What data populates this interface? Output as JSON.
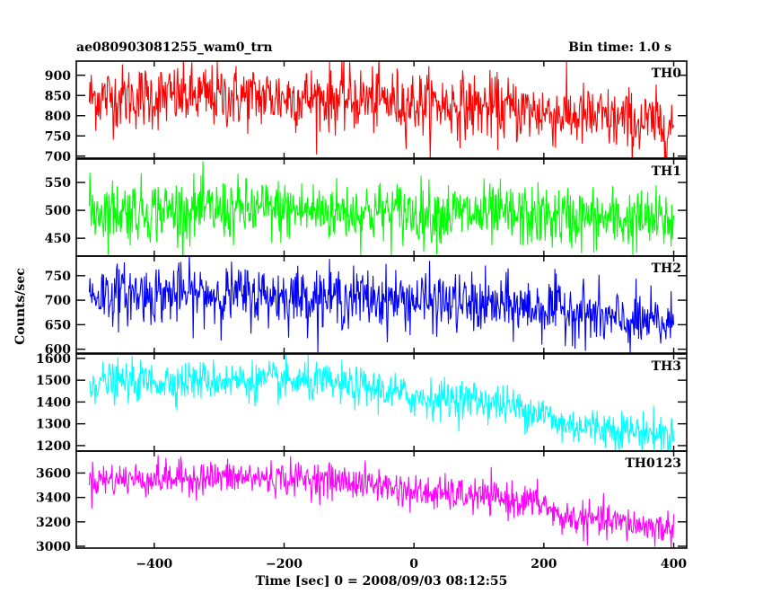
{
  "header": {
    "title": "ae080903081255_wam0_trn",
    "bin_time": "Bin time: 1.0 s"
  },
  "chart_data": {
    "type": "line",
    "title": "ae080903081255_wam0_trn",
    "xlabel": "Time [sec] 0 = 2008/09/03 08:12:55",
    "ylabel": "Counts/sec",
    "xlim": [
      -520,
      420
    ],
    "x_ticks": [
      -400,
      -200,
      0,
      200,
      400
    ],
    "x_range": [
      -500,
      400
    ],
    "bin_seconds": 1.0,
    "panels": [
      {
        "name": "TH0",
        "color": "#ff0000",
        "ylim": [
          695,
          935
        ],
        "yticks": [
          700,
          750,
          800,
          850,
          900
        ],
        "trend": {
          "x": [
            -500,
            -300,
            -100,
            0,
            100,
            200,
            300,
            400
          ],
          "y": [
            845,
            848,
            842,
            832,
            822,
            808,
            790,
            775
          ]
        },
        "noise_sigma": 40
      },
      {
        "name": "TH1",
        "color": "#00ff00",
        "ylim": [
          418,
          592
        ],
        "yticks": [
          450,
          500,
          550
        ],
        "trend": {
          "x": [
            -500,
            -200,
            0,
            200,
            400
          ],
          "y": [
            500,
            500,
            496,
            488,
            480
          ]
        },
        "noise_sigma": 28
      },
      {
        "name": "TH2",
        "color": "#0000ff",
        "ylim": [
          592,
          790
        ],
        "yticks": [
          600,
          650,
          700,
          750
        ],
        "trend": {
          "x": [
            -500,
            -300,
            -100,
            0,
            100,
            250,
            300,
            400
          ],
          "y": [
            713,
            712,
            705,
            700,
            690,
            680,
            658,
            650
          ]
        },
        "noise_sigma": 30
      },
      {
        "name": "TH3",
        "color": "#00ffff",
        "ylim": [
          1175,
          1620
        ],
        "yticks": [
          1200,
          1300,
          1400,
          1500,
          1600
        ],
        "trend": {
          "x": [
            -500,
            -300,
            -150,
            -50,
            0,
            100,
            200,
            220,
            300,
            400
          ],
          "y": [
            1490,
            1500,
            1490,
            1455,
            1420,
            1410,
            1350,
            1300,
            1280,
            1245
          ]
        },
        "noise_sigma": 45
      },
      {
        "name": "TH0123",
        "color": "#ff00ff",
        "ylim": [
          2985,
          3780
        ],
        "yticks": [
          3000,
          3200,
          3400,
          3600
        ],
        "trend": {
          "x": [
            -500,
            -300,
            -150,
            -50,
            0,
            100,
            200,
            220,
            300,
            400
          ],
          "y": [
            3545,
            3565,
            3550,
            3500,
            3440,
            3410,
            3350,
            3240,
            3200,
            3140
          ]
        },
        "noise_sigma": 70
      }
    ]
  }
}
